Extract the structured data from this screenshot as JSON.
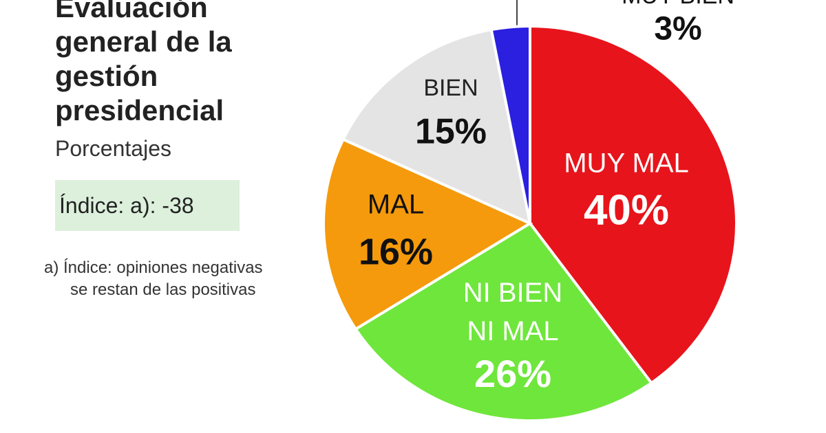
{
  "chart_data": {
    "type": "pie",
    "title": "Evaluación general de la gestión presidencial",
    "subtitle": "Porcentajes",
    "annotations": [
      "Índice: a): -38",
      "a) Índice: opiniones negativas se restan de las positivas"
    ],
    "categories": [
      "MUY MAL",
      "NI BIEN NI MAL",
      "MAL",
      "BIEN",
      "MUY BIEN"
    ],
    "values": [
      40,
      26,
      16,
      15,
      3
    ],
    "value_labels": [
      "40%",
      "26%",
      "16%",
      "15%",
      "3%"
    ],
    "colors": [
      "#e8141b",
      "#6fe63c",
      "#f59a0c",
      "#e4e4e4",
      "#2b1fe0"
    ]
  }
}
